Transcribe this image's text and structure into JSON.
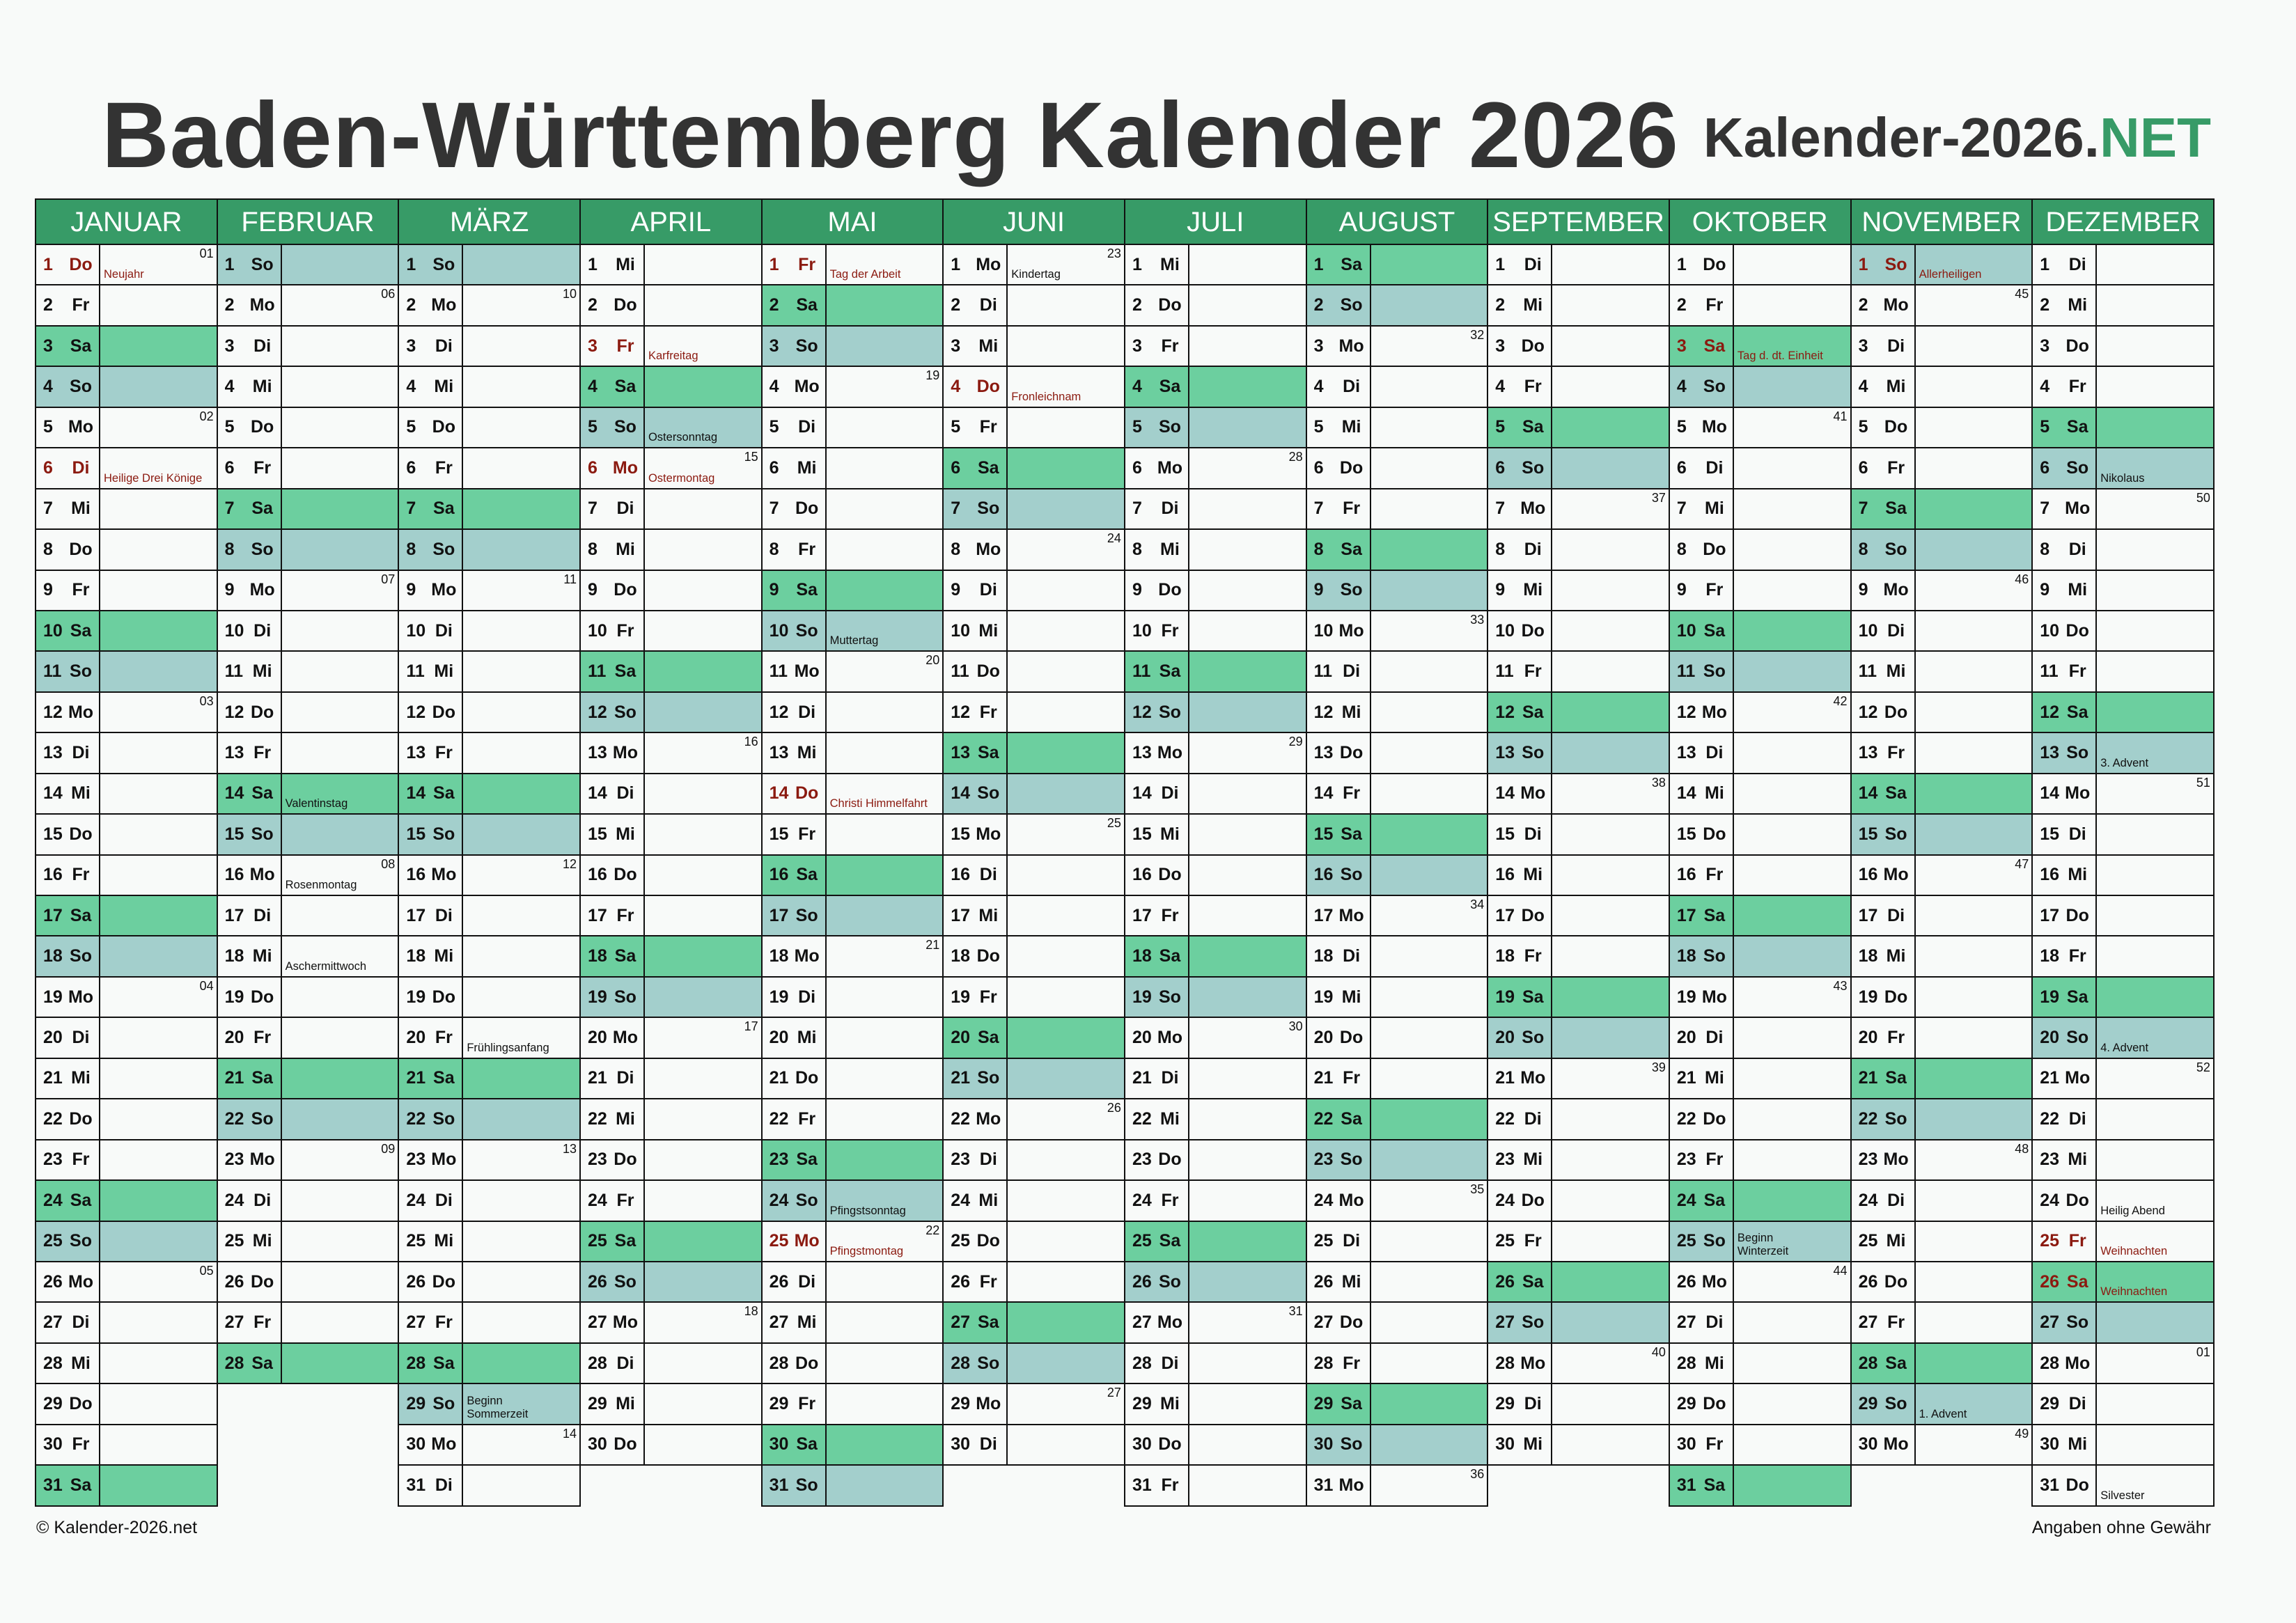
{
  "title": "Baden-Württemberg Kalender 2026",
  "brand": {
    "main": "Kalender-2026.",
    "accent": "NET"
  },
  "footer": {
    "copyright": "© Kalender-2026.net",
    "disclaimer": "Angaben ohne Gewähr"
  },
  "colors": {
    "header": "#379b67",
    "saturday": "#6ccf9f",
    "sunday": "#a3cfcc",
    "holiday_text": "#8b1a10"
  },
  "weekday_names": [
    "Mo",
    "Di",
    "Mi",
    "Do",
    "Fr",
    "Sa",
    "So"
  ],
  "months": [
    {
      "name": "JANUAR",
      "days": 31,
      "first_weekday": 3,
      "holidays": [
        1,
        6
      ],
      "notes": {
        "1": {
          "text": "Neujahr",
          "red": true
        },
        "6": {
          "text": "Heilige Drei Könige",
          "red": true
        }
      },
      "weeks": {
        "1": "01",
        "5": "02",
        "12": "03",
        "19": "04",
        "26": "05"
      }
    },
    {
      "name": "FEBRUAR",
      "days": 28,
      "first_weekday": 6,
      "holidays": [],
      "notes": {
        "14": {
          "text": "Valentinstag"
        },
        "16": {
          "text": "Rosenmontag"
        },
        "18": {
          "text": "Aschermittwoch"
        }
      },
      "weeks": {
        "2": "06",
        "9": "07",
        "16": "08",
        "23": "09"
      }
    },
    {
      "name": "MÄRZ",
      "days": 31,
      "first_weekday": 6,
      "holidays": [],
      "notes": {
        "20": {
          "text": "Frühlingsanfang"
        },
        "29": {
          "text": "Beginn Sommerzeit",
          "wrap": true
        }
      },
      "weeks": {
        "2": "10",
        "9": "11",
        "16": "12",
        "23": "13",
        "30": "14"
      }
    },
    {
      "name": "APRIL",
      "days": 30,
      "first_weekday": 2,
      "holidays": [
        3,
        6
      ],
      "notes": {
        "3": {
          "text": "Karfreitag",
          "red": true
        },
        "5": {
          "text": "Ostersonntag"
        },
        "6": {
          "text": "Ostermontag",
          "red": true
        }
      },
      "weeks": {
        "6": "15",
        "13": "16",
        "20": "17",
        "27": "18"
      }
    },
    {
      "name": "MAI",
      "days": 31,
      "first_weekday": 4,
      "holidays": [
        1,
        14,
        25
      ],
      "notes": {
        "1": {
          "text": "Tag der Arbeit",
          "red": true
        },
        "10": {
          "text": "Muttertag"
        },
        "14": {
          "text": "Christi Himmelfahrt",
          "red": true
        },
        "24": {
          "text": "Pfingstsonntag"
        },
        "25": {
          "text": "Pfingstmontag",
          "red": true
        }
      },
      "weeks": {
        "4": "19",
        "11": "20",
        "18": "21",
        "25": "22"
      }
    },
    {
      "name": "JUNI",
      "days": 30,
      "first_weekday": 0,
      "holidays": [
        4
      ],
      "notes": {
        "1": {
          "text": "Kindertag"
        },
        "4": {
          "text": "Fronleichnam",
          "red": true
        }
      },
      "weeks": {
        "1": "23",
        "8": "24",
        "15": "25",
        "22": "26",
        "29": "27"
      }
    },
    {
      "name": "JULI",
      "days": 31,
      "first_weekday": 2,
      "holidays": [],
      "notes": {},
      "weeks": {
        "6": "28",
        "13": "29",
        "20": "30",
        "27": "31"
      }
    },
    {
      "name": "AUGUST",
      "days": 31,
      "first_weekday": 5,
      "holidays": [],
      "notes": {},
      "weeks": {
        "3": "32",
        "10": "33",
        "17": "34",
        "24": "35",
        "31": "36"
      }
    },
    {
      "name": "SEPTEMBER",
      "days": 30,
      "first_weekday": 1,
      "holidays": [],
      "notes": {},
      "weeks": {
        "7": "37",
        "14": "38",
        "21": "39",
        "28": "40"
      }
    },
    {
      "name": "OKTOBER",
      "days": 31,
      "first_weekday": 3,
      "holidays": [
        3
      ],
      "notes": {
        "3": {
          "text": "Tag d. dt. Einheit",
          "red": true
        },
        "25": {
          "text": "Beginn Winterzeit",
          "wrap": true
        }
      },
      "weeks": {
        "5": "41",
        "12": "42",
        "19": "43",
        "26": "44"
      }
    },
    {
      "name": "NOVEMBER",
      "days": 30,
      "first_weekday": 6,
      "holidays": [
        1
      ],
      "notes": {
        "1": {
          "text": "Allerheiligen",
          "red": true
        },
        "29": {
          "text": "1. Advent"
        }
      },
      "weeks": {
        "2": "45",
        "9": "46",
        "16": "47",
        "23": "48",
        "30": "49"
      }
    },
    {
      "name": "DEZEMBER",
      "days": 31,
      "first_weekday": 1,
      "holidays": [
        25,
        26
      ],
      "notes": {
        "6": {
          "text": "Nikolaus"
        },
        "13": {
          "text": "3. Advent"
        },
        "20": {
          "text": "4. Advent"
        },
        "24": {
          "text": "Heilig Abend"
        },
        "25": {
          "text": "Weihnachten",
          "red": true
        },
        "26": {
          "text": "Weihnachten",
          "red": true
        },
        "31": {
          "text": "Silvester"
        }
      },
      "weeks": {
        "7": "50",
        "14": "51",
        "21": "52",
        "28": "01"
      }
    }
  ]
}
